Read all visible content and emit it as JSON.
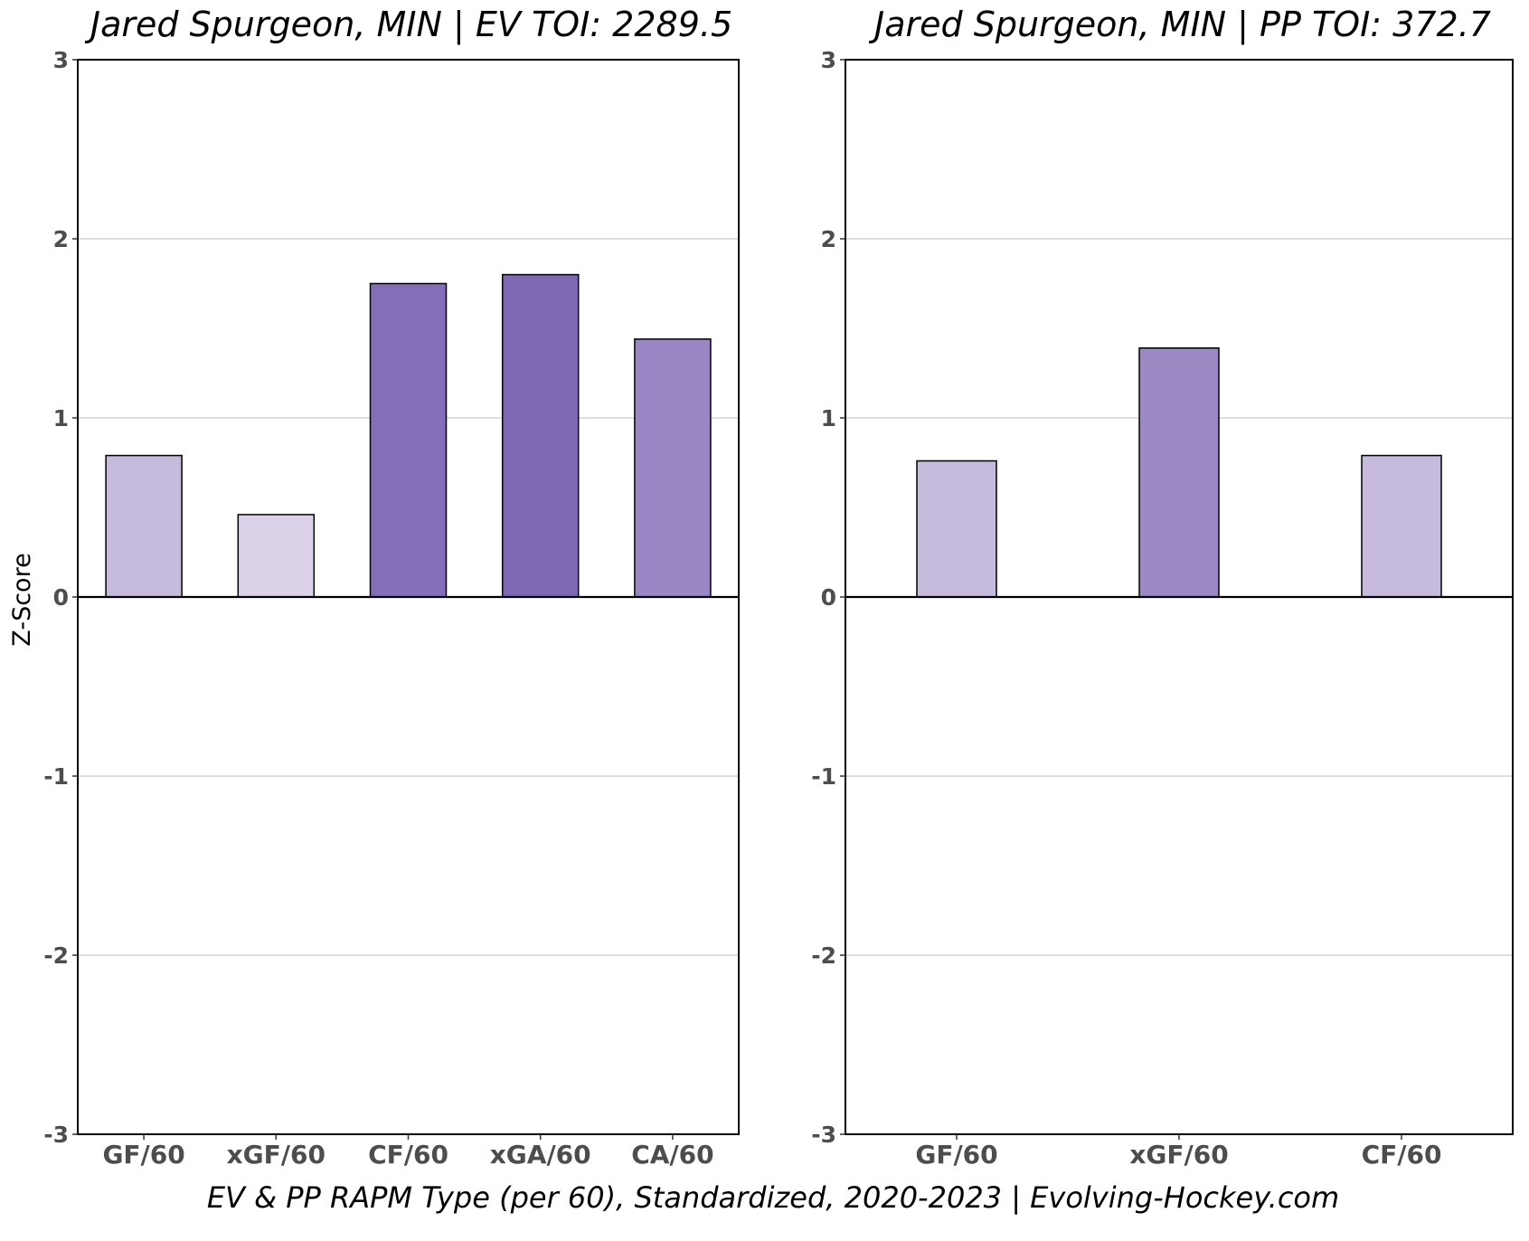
{
  "chart_data": [
    {
      "type": "bar",
      "title": "Jared Spurgeon, MIN  |  EV TOI: 2289.5",
      "ylabel": "Z-Score",
      "xlabel": "",
      "categories": [
        "GF/60",
        "xGF/60",
        "CF/60",
        "xGA/60",
        "CA/60"
      ],
      "values": [
        0.79,
        0.46,
        1.75,
        1.8,
        1.44
      ],
      "colors": [
        "#c6bbdc",
        "#dcd3ea",
        "#836fb7",
        "#7f69b5",
        "#9887c4"
      ],
      "ylim": [
        -3,
        3
      ],
      "yticks": [
        "-3",
        "-2",
        "-1",
        "0",
        "1",
        "2",
        "3"
      ],
      "grid": "horizontal",
      "legend": "none"
    },
    {
      "type": "bar",
      "title": "Jared Spurgeon, MIN  |  PP TOI: 372.7",
      "ylabel": "",
      "xlabel": "",
      "categories": [
        "GF/60",
        "xGF/60",
        "CF/60"
      ],
      "values": [
        0.76,
        1.39,
        0.79
      ],
      "colors": [
        "#c6bbdc",
        "#9b89c4",
        "#c6bbdc"
      ],
      "ylim": [
        -3,
        3
      ],
      "yticks": [
        "-3",
        "-2",
        "-1",
        "0",
        "1",
        "2",
        "3"
      ],
      "grid": "horizontal",
      "legend": "none"
    }
  ],
  "caption": "EV & PP RAPM Type (per 60), Standardized, 2020-2023    |    Evolving-Hockey.com",
  "colors": {
    "gridline": "#bdbdbd",
    "zero_line": "#000000",
    "bar_border": "#000000",
    "tick_text": "#4d4d4d"
  }
}
